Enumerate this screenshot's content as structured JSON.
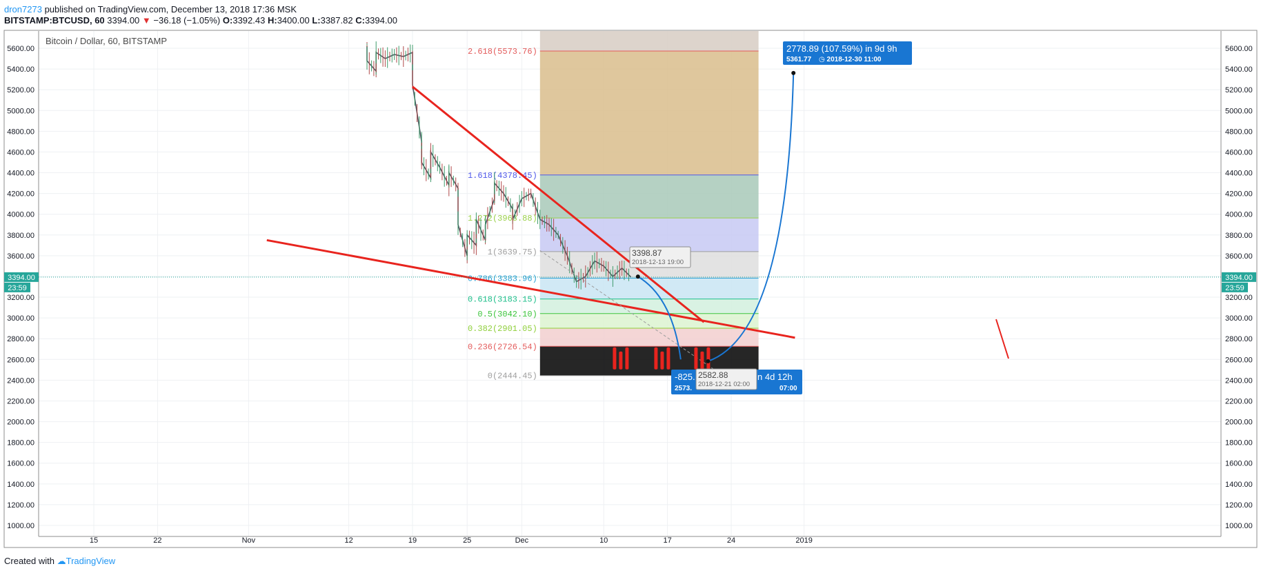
{
  "header": {
    "author": "dron7273",
    "published_text": "published on TradingView.com, December 13, 2018 17:36 MSK",
    "symbol": "BITSTAMP:BTCUSD, 60",
    "last": "3394.00",
    "change": "−36.18 (−1.05%)",
    "ohlc": [
      {
        "label": "O:",
        "value": "3392.43"
      },
      {
        "label": "H:",
        "value": "3400.00"
      },
      {
        "label": "L:",
        "value": "3387.82"
      },
      {
        "label": "C:",
        "value": "3394.00"
      }
    ]
  },
  "footer": {
    "created_text": "Created with",
    "brand": "TradingView"
  },
  "chart_data": {
    "type": "line",
    "title": "Bitcoin / Dollar, 60, BITSTAMP",
    "ylim": [
      1000,
      5800
    ],
    "y_ticks": [
      1000,
      1200,
      1400,
      1600,
      1800,
      2000,
      2200,
      2400,
      2600,
      2800,
      3000,
      3200,
      3400,
      3600,
      3800,
      4000,
      4200,
      4400,
      4600,
      4800,
      5000,
      5200,
      5400,
      5600
    ],
    "x_ticks": [
      {
        "label": "15",
        "date": "2018-10-15"
      },
      {
        "label": "22",
        "date": "2018-10-22"
      },
      {
        "label": "Nov",
        "date": "2018-11-01"
      },
      {
        "label": "12",
        "date": "2018-11-12"
      },
      {
        "label": "19",
        "date": "2018-11-19"
      },
      {
        "label": "25",
        "date": "2018-11-25"
      },
      {
        "label": "Dec",
        "date": "2018-12-01"
      },
      {
        "label": "10",
        "date": "2018-12-10"
      },
      {
        "label": "17",
        "date": "2018-12-17"
      },
      {
        "label": "24",
        "date": "2018-12-24"
      },
      {
        "label": "2019",
        "date": "2019-01-01"
      }
    ],
    "price_path": [
      [
        "2018-11-14",
        5620
      ],
      [
        "2018-11-14",
        5480
      ],
      [
        "2018-11-15",
        5380
      ],
      [
        "2018-11-15",
        5560
      ],
      [
        "2018-11-16",
        5500
      ],
      [
        "2018-11-17",
        5540
      ],
      [
        "2018-11-18",
        5520
      ],
      [
        "2018-11-19",
        5560
      ],
      [
        "2018-11-19",
        5250
      ],
      [
        "2018-11-20",
        4700
      ],
      [
        "2018-11-20",
        4500
      ],
      [
        "2018-11-21",
        4350
      ],
      [
        "2018-11-21",
        4600
      ],
      [
        "2018-11-22",
        4450
      ],
      [
        "2018-11-23",
        4280
      ],
      [
        "2018-11-23",
        4400
      ],
      [
        "2018-11-24",
        4250
      ],
      [
        "2018-11-24",
        3900
      ],
      [
        "2018-11-25",
        3600
      ],
      [
        "2018-11-25",
        3800
      ],
      [
        "2018-11-26",
        3700
      ],
      [
        "2018-11-26",
        3950
      ],
      [
        "2018-11-27",
        3750
      ],
      [
        "2018-11-27",
        3900
      ],
      [
        "2018-11-28",
        4150
      ],
      [
        "2018-11-28",
        4300
      ],
      [
        "2018-11-29",
        4200
      ],
      [
        "2018-11-30",
        4050
      ],
      [
        "2018-11-30",
        3950
      ],
      [
        "2018-12-01",
        4150
      ],
      [
        "2018-12-02",
        4200
      ],
      [
        "2018-12-03",
        3950
      ],
      [
        "2018-12-04",
        3900
      ],
      [
        "2018-12-05",
        3800
      ],
      [
        "2018-12-06",
        3600
      ],
      [
        "2018-12-07",
        3350
      ],
      [
        "2018-12-08",
        3400
      ],
      [
        "2018-12-09",
        3550
      ],
      [
        "2018-12-10",
        3500
      ],
      [
        "2018-12-11",
        3400
      ],
      [
        "2018-12-12",
        3480
      ],
      [
        "2018-12-13",
        3394
      ]
    ],
    "last_price": {
      "value": "3394.00",
      "countdown": "23:59"
    },
    "fibonacci": {
      "start_date": "2018-12-03",
      "end_date": "2018-12-27",
      "levels": [
        {
          "ratio": "2.618",
          "price": 5573.76,
          "label": "2.618(5573.76)",
          "color": "#e35a5a"
        },
        {
          "ratio": "1.618",
          "price": 4378.45,
          "label": "1.618(4378.45)",
          "color": "#4f58ea"
        },
        {
          "ratio": "1.272",
          "price": 3963.88,
          "label": "1.272(3963.88)",
          "color": "#9ad048"
        },
        {
          "ratio": "1",
          "price": 3639.75,
          "label": "1(3639.75)",
          "color": "#9e9e9e"
        },
        {
          "ratio": "0.786",
          "price": 3383.96,
          "label": "0.786(3383.96)",
          "color": "#2aa0d6"
        },
        {
          "ratio": "0.618",
          "price": 3183.15,
          "label": "0.618(3183.15)",
          "color": "#1dbf8a"
        },
        {
          "ratio": "0.5",
          "price": 3042.1,
          "label": "0.5(3042.10)",
          "color": "#3cc43c"
        },
        {
          "ratio": "0.382",
          "price": 2901.05,
          "label": "0.382(2901.05)",
          "color": "#8fcf3a"
        },
        {
          "ratio": "0.236",
          "price": 2726.54,
          "label": "0.236(2726.54)",
          "color": "#e35a5a"
        },
        {
          "ratio": "0",
          "price": 2444.45,
          "label": "0(2444.45)",
          "color": "#9e9e9e"
        }
      ],
      "band_colors": [
        "#d9bd8c",
        "#a8c9b8",
        "#c7c9f3",
        "#dedede",
        "#c9e5f3",
        "#d2f0de",
        "#dcf3d0",
        "#f2cfcf"
      ]
    },
    "trendlines": [
      {
        "name": "upper",
        "from": [
          "2018-11-19",
          5230
        ],
        "to": [
          "2018-12-21",
          2960
        ]
      },
      {
        "name": "lower",
        "from": [
          "2018-11-03",
          3750
        ],
        "to": [
          "2018-12-31",
          2810
        ]
      }
    ],
    "projection_dashed": {
      "from": [
        "2018-12-03",
        3650
      ],
      "to": [
        "2018-12-23",
        2450
      ]
    },
    "annotations": [
      {
        "name": "peak-callout",
        "anchor": [
          "2018-12-30",
          5361.77
        ],
        "line1": "2778.89 (107.59%) in 9d 9h",
        "line2": "5361.77",
        "line2b": "2018-12-30  11:00"
      },
      {
        "name": "drop-callout",
        "visible_left": "-825.",
        "visible_left2": "2573.",
        "visible_right": "n 4d 12h",
        "visible_right2": "07:00"
      },
      {
        "name": "point-label-1",
        "line1": "3398.87",
        "line2": "2018-12-13 19:00",
        "anchor": [
          "2018-12-13",
          3398.87
        ]
      },
      {
        "name": "point-label-2",
        "line1": "2582.88",
        "line2": "2018-12-21 02:00",
        "anchor": [
          "2018-12-21",
          2582.88
        ]
      }
    ],
    "colors": {
      "accent": "#2196f3",
      "trend": "#e8241e",
      "callout": "#1976d2",
      "lastprice": "#26a69a"
    }
  }
}
